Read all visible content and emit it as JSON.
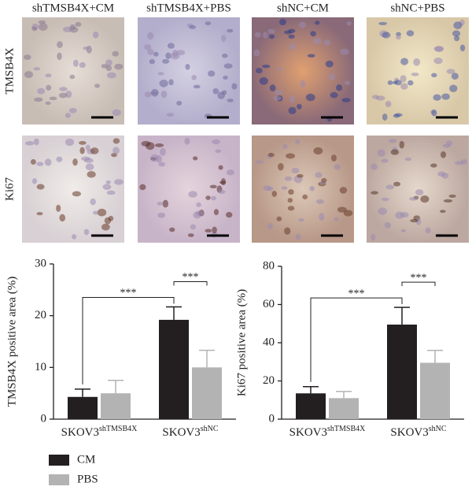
{
  "images": {
    "columns": [
      "shTMSB4X+CM",
      "shTMSB4X+PBS",
      "shNC+CM",
      "shNC+PBS"
    ],
    "rows": [
      "TMSB4X",
      "Ki67"
    ]
  },
  "chart_data": [
    {
      "type": "bar",
      "ylabel": "TMSB4X positive area (%)",
      "categories": [
        "SKOV3",
        "SKOV3"
      ],
      "category_superscripts": [
        "shTMSB4X",
        "shNC"
      ],
      "ylim": [
        0,
        30
      ],
      "yticks": [
        0,
        10,
        20,
        30
      ],
      "significance": [
        "***",
        "***"
      ],
      "series": [
        {
          "name": "CM",
          "color": "#231f20",
          "values": [
            4.3,
            19.2
          ],
          "errors": [
            1.5,
            2.5
          ]
        },
        {
          "name": "PBS",
          "color": "#b3b3b3",
          "values": [
            5.0,
            10.0
          ],
          "errors": [
            2.5,
            3.3
          ]
        }
      ]
    },
    {
      "type": "bar",
      "ylabel": "Ki67 positive area (%)",
      "categories": [
        "SKOV3",
        "SKOV3"
      ],
      "category_superscripts": [
        "shTMSB4X",
        "shNC"
      ],
      "ylim": [
        0,
        80
      ],
      "yticks": [
        0,
        20,
        40,
        60,
        80
      ],
      "significance": [
        "***",
        "***"
      ],
      "series": [
        {
          "color": "#231f20",
          "values": [
            13.5,
            49.5
          ],
          "errors": [
            3.5,
            9
          ]
        },
        {
          "color": "#b3b3b3",
          "values": [
            11,
            29.5
          ],
          "errors": [
            3.5,
            6.5
          ]
        }
      ]
    }
  ]
}
